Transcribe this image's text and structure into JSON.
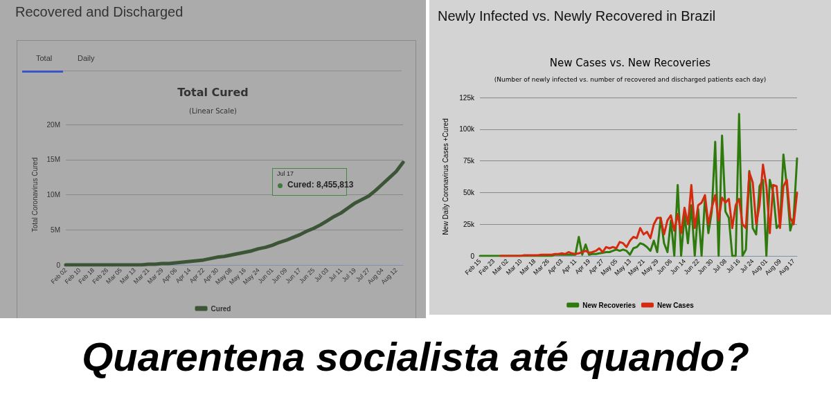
{
  "chart_data": [
    {
      "type": "line",
      "title": "Total Cured",
      "subtitle": "(Linear Scale)",
      "ylabel": "Total Coronavirus Cured",
      "annotations": [
        "Recovered and Discharged",
        "Total",
        "Daily",
        "Jul 17",
        "Cured: 8,455,813"
      ],
      "categories": [
        "Feb 02",
        null,
        "Feb 10",
        null,
        "Feb 18",
        null,
        "Feb 26",
        null,
        "Mar 05",
        null,
        "Mar 13",
        null,
        "Mar 21",
        null,
        "Mar 29",
        null,
        "Apr 06",
        null,
        "Apr 14",
        null,
        "Apr 22",
        null,
        "Apr 30",
        null,
        "May 08",
        null,
        "May 16",
        null,
        "May 24",
        null,
        "Jun 01",
        null,
        "Jun 09",
        null,
        "Jun 17",
        null,
        "Jun 25",
        null,
        "Jul 03",
        null,
        "Jul 11",
        null,
        "Jul 19",
        null,
        "Jul 27",
        null,
        "Aug 04",
        null,
        "Aug 12",
        null
      ],
      "series": [
        {
          "name": "Cured",
          "color": "#3b5536",
          "values": [
            0,
            0,
            0,
            0,
            0,
            0,
            0,
            0,
            0,
            0,
            0,
            0,
            100000,
            100000,
            200000,
            200000,
            300000,
            400000,
            500000,
            600000,
            700000,
            900000,
            1100000,
            1200000,
            1400000,
            1600000,
            1800000,
            2000000,
            2300000,
            2500000,
            2800000,
            3200000,
            3500000,
            3900000,
            4300000,
            4800000,
            5200000,
            5700000,
            6300000,
            6900000,
            7400000,
            8100000,
            8800000,
            9300000,
            9800000,
            10600000,
            11500000,
            12400000,
            13300000,
            14600000
          ]
        }
      ],
      "ylim": [
        0,
        20000000
      ],
      "yticks": [
        0,
        {
          "value": 5000000,
          "label": "5M"
        },
        {
          "value": 10000000,
          "label": "10M"
        },
        {
          "value": 15000000,
          "label": "15M"
        },
        {
          "value": 20000000,
          "label": "20M"
        }
      ],
      "grid": "y",
      "legend": "bottom"
    },
    {
      "type": "line",
      "title": "New Cases vs. New Recoveries",
      "subtitle": "(Number of newly infected vs. number of recovered and discharged patients each day)",
      "ylabel": "New Daily Coronavirus Cases +Cured",
      "annotations": [
        "Newly Infected vs. Newly Recovered in Brazil"
      ],
      "categories": [
        "Feb 15",
        null,
        null,
        null,
        "Feb 23",
        null,
        null,
        null,
        "Mar 02",
        null,
        null,
        null,
        "Mar 10",
        null,
        null,
        null,
        "Mar 18",
        null,
        null,
        null,
        "Mar 26",
        null,
        null,
        null,
        "Apr 03",
        null,
        null,
        null,
        "Apr 11",
        null,
        null,
        null,
        "Apr 19",
        null,
        null,
        null,
        "Apr 27",
        null,
        null,
        null,
        "May 05",
        null,
        null,
        null,
        "May 13",
        null,
        null,
        null,
        "May 21",
        null,
        null,
        null,
        "May 29",
        null,
        null,
        null,
        "Jun 06",
        null,
        null,
        null,
        "Jun 14",
        null,
        null,
        null,
        "Jun 22",
        null,
        null,
        null,
        "Jun 30",
        null,
        null,
        null,
        "Jul 08",
        null,
        null,
        null,
        "Jul 16",
        null,
        null,
        null,
        "Jul 24",
        null,
        null,
        null,
        "Aug 01",
        null,
        null,
        null,
        "Aug 09",
        null,
        null,
        null,
        "Aug 17",
        null
      ],
      "series": [
        {
          "name": "New Recoveries",
          "color": "#2f7a0c",
          "values": [
            0,
            0,
            0,
            0,
            0,
            0,
            0,
            0,
            0,
            0,
            0,
            0,
            0,
            0,
            0,
            0,
            0,
            0,
            0,
            0,
            0,
            0,
            1000,
            1000,
            1000,
            1000,
            1000,
            1000,
            1000,
            15000,
            1000,
            9000,
            1000,
            1500,
            1500,
            2000,
            2500,
            3000,
            3000,
            4000,
            5000,
            4000,
            5000,
            4000,
            1000,
            6000,
            7000,
            10000,
            9000,
            7000,
            4000,
            12000,
            3000,
            30000,
            10000,
            3000,
            28000,
            0,
            56000,
            0,
            32000,
            10000,
            40000,
            0,
            37000,
            0,
            46000,
            18000,
            35000,
            90000,
            0,
            95000,
            35000,
            30000,
            0,
            0,
            112000,
            0,
            5000,
            67000,
            22000,
            17000,
            55000,
            60000,
            0,
            60000,
            50000,
            22000,
            25000,
            80000,
            55000,
            20000,
            30000,
            77000
          ]
        },
        {
          "name": "New Cases",
          "color": "#d42b0e",
          "values": [
            null,
            null,
            null,
            null,
            null,
            null,
            0,
            0,
            0,
            0,
            0,
            0,
            0,
            500,
            500,
            500,
            500,
            500,
            1000,
            1000,
            1000,
            1000,
            1500,
            1500,
            2000,
            1500,
            3000,
            2000,
            1500,
            2000,
            3000,
            4000,
            2500,
            3000,
            4000,
            6000,
            3000,
            7000,
            6000,
            7000,
            6000,
            11000,
            10000,
            7000,
            12000,
            15000,
            14000,
            22000,
            17000,
            19000,
            14000,
            25000,
            30000,
            30000,
            17000,
            28000,
            32000,
            20000,
            33000,
            18000,
            38000,
            25000,
            56000,
            22000,
            40000,
            42000,
            48000,
            25000,
            38000,
            48000,
            28000,
            46000,
            42000,
            45000,
            22000,
            40000,
            45000,
            25000,
            22000,
            66000,
            58000,
            25000,
            40000,
            72000,
            55000,
            18000,
            56000,
            55000,
            22000,
            55000,
            60000,
            30000,
            25000,
            50000
          ]
        }
      ],
      "ylim": [
        0,
        125000
      ],
      "yticks": [
        0,
        {
          "value": 25000,
          "label": "25k"
        },
        {
          "value": 50000,
          "label": "50k"
        },
        {
          "value": 75000,
          "label": "75k"
        },
        {
          "value": 100000,
          "label": "100k"
        },
        {
          "value": 125000,
          "label": "125k"
        }
      ],
      "grid": "y",
      "legend": "bottom"
    },
    {
      "type": "other",
      "title": "Quarentena socialista até quando?"
    }
  ]
}
